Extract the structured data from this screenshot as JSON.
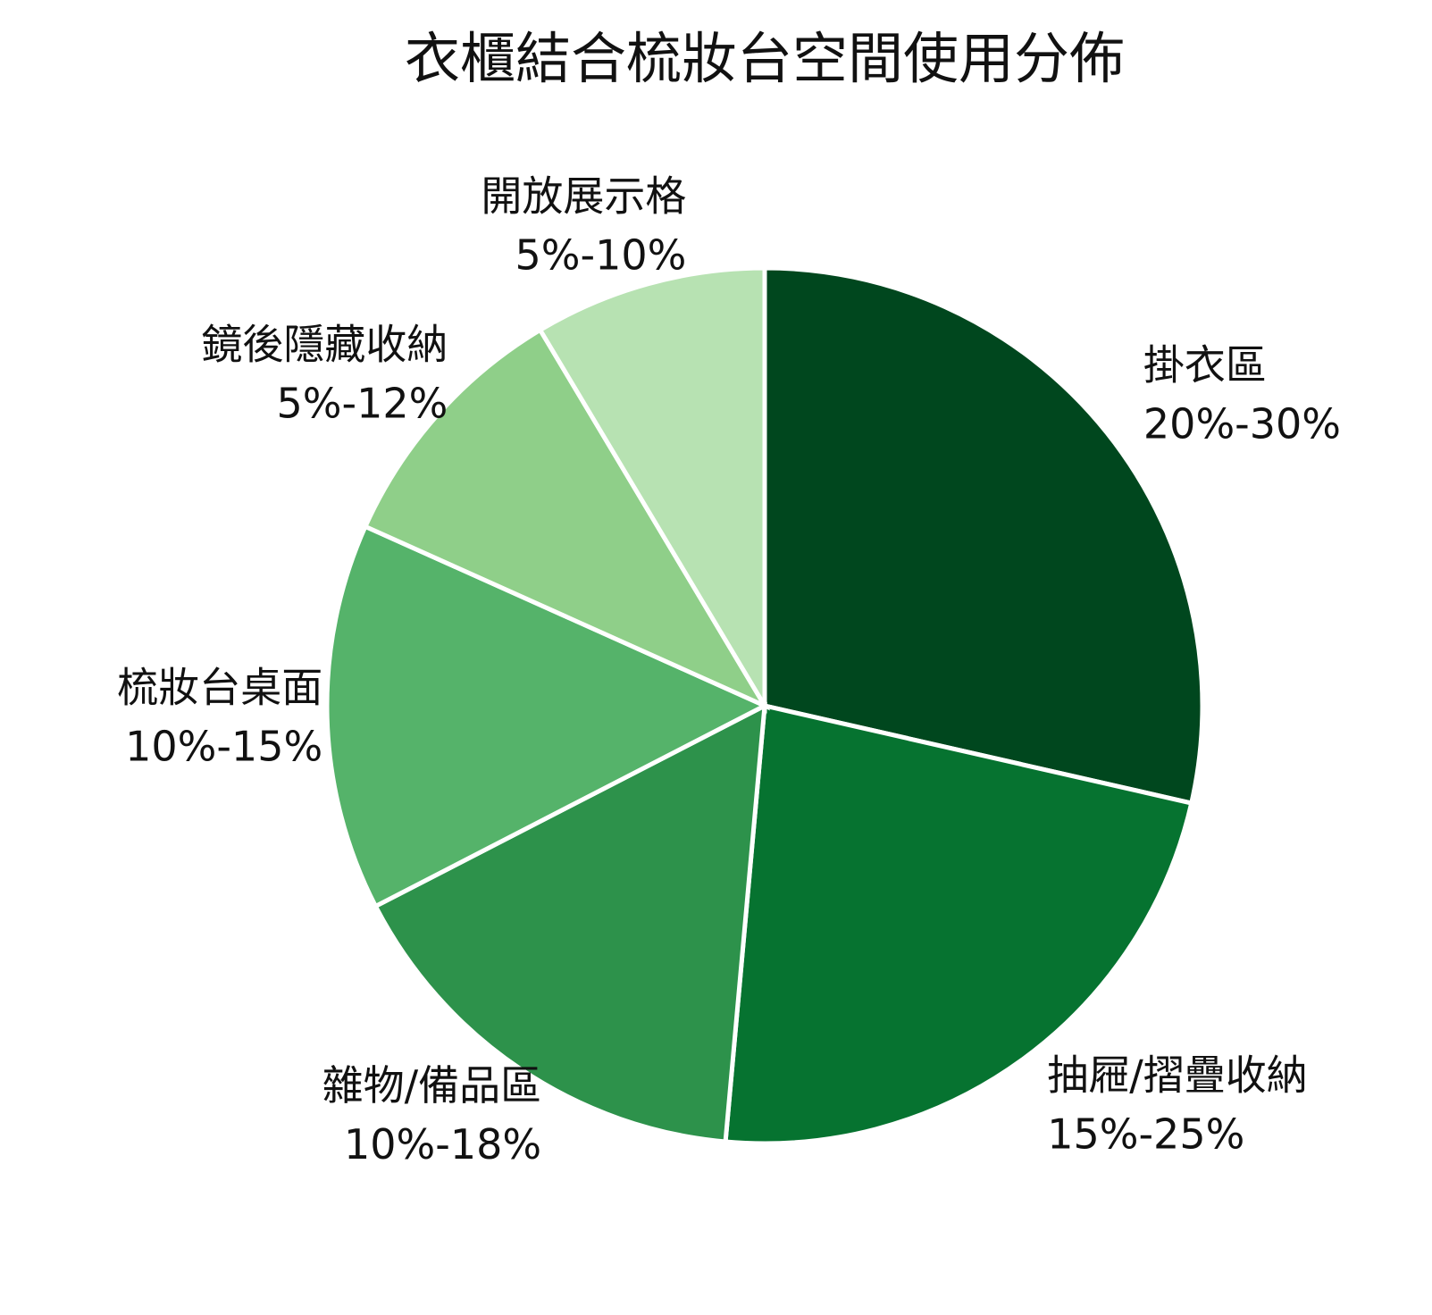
{
  "chart_data": {
    "type": "pie",
    "title": "衣櫃結合梳妝台空間使用分佈",
    "categories": [
      "掛衣區",
      "抽屜/摺疊收納",
      "雜物/備品區",
      "梳妝台桌面",
      "鏡後隱藏收納",
      "開放展示格"
    ],
    "values": [
      25,
      20,
      14,
      12.5,
      8.5,
      7.5
    ],
    "value_labels": [
      "20%-30%",
      "15%-25%",
      "10%-18%",
      "10%-15%",
      "5%-12%",
      "5%-10%"
    ],
    "colors": [
      "#00471e",
      "#067330",
      "#2d924b",
      "#55b36a",
      "#8fcf89",
      "#b7e2b2"
    ]
  }
}
